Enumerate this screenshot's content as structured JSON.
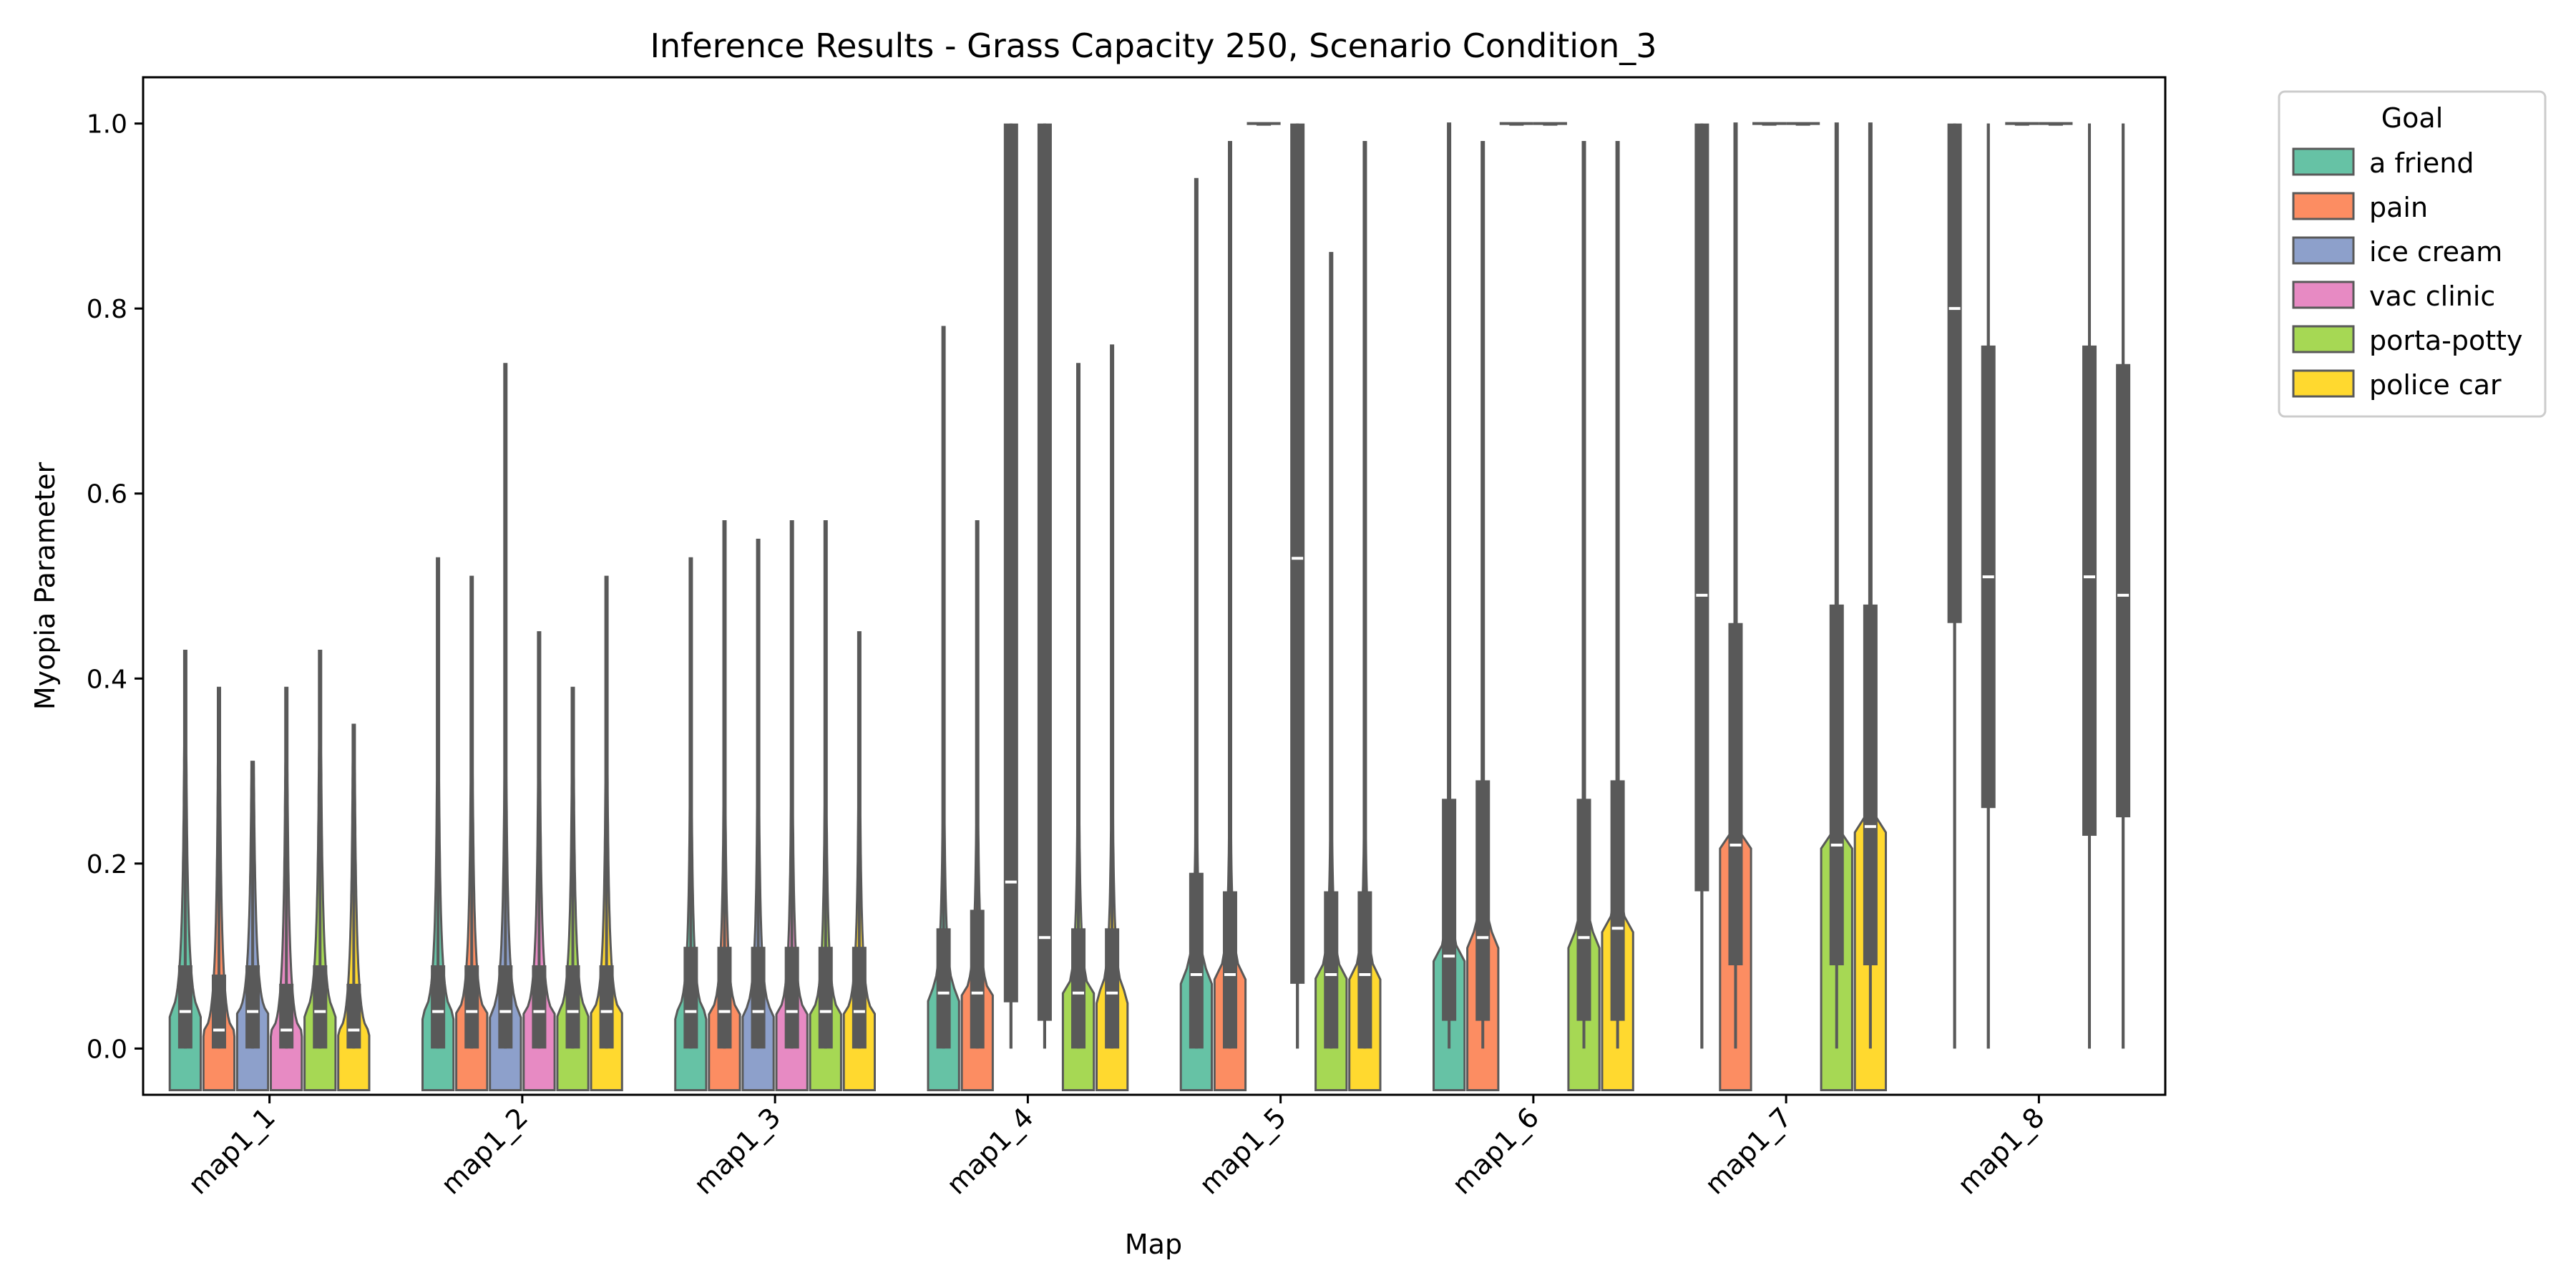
{
  "chart_data": {
    "type": "violin",
    "title": "Inference Results - Grass Capacity 250, Scenario Condition_3",
    "xlabel": "Map",
    "ylabel": "Myopia Parameter",
    "ylim": [
      -0.05,
      1.05
    ],
    "yticks": [
      "0.0",
      "0.2",
      "0.4",
      "0.6",
      "0.8",
      "1.0"
    ],
    "categories": [
      "map1_1",
      "map1_2",
      "map1_3",
      "map1_4",
      "map1_5",
      "map1_6",
      "map1_7",
      "map1_8"
    ],
    "legend": {
      "title": "Goal",
      "position": "outside upper-right",
      "entries": [
        "a friend",
        "pain",
        "ice cream",
        "vac clinic",
        "porta-potty",
        "police car"
      ]
    },
    "series": [
      {
        "name": "a friend",
        "color": "#66c2a5",
        "stats": [
          {
            "max": 0.43,
            "q1": 0.0,
            "median": 0.04,
            "q3": 0.09,
            "kde": 0.4
          },
          {
            "max": 0.53,
            "q1": 0.0,
            "median": 0.04,
            "q3": 0.09,
            "kde": 0.35
          },
          {
            "max": 0.53,
            "q1": 0.0,
            "median": 0.04,
            "q3": 0.11,
            "kde": 0.3
          },
          {
            "max": 0.78,
            "q1": 0.0,
            "median": 0.06,
            "q3": 0.13,
            "kde": 0.25
          },
          {
            "max": 0.94,
            "q1": 0.0,
            "median": 0.08,
            "q3": 0.19,
            "kde": 0.2
          },
          {
            "max": 1.0,
            "q1": 0.03,
            "median": 0.1,
            "q3": 0.27,
            "kde": 0.15
          },
          {
            "max": 1.0,
            "q1": 0.17,
            "median": 0.49,
            "q3": 1.0,
            "kde": 0.0
          },
          {
            "max": 1.0,
            "q1": 0.46,
            "median": 0.8,
            "q3": 1.0,
            "kde": 0.0
          }
        ]
      },
      {
        "name": "pain",
        "color": "#fc8d62",
        "stats": [
          {
            "max": 0.39,
            "q1": 0.0,
            "median": 0.02,
            "q3": 0.08,
            "kde": 0.4
          },
          {
            "max": 0.51,
            "q1": 0.0,
            "median": 0.04,
            "q3": 0.09,
            "kde": 0.35
          },
          {
            "max": 0.57,
            "q1": 0.0,
            "median": 0.04,
            "q3": 0.11,
            "kde": 0.3
          },
          {
            "max": 0.57,
            "q1": 0.0,
            "median": 0.06,
            "q3": 0.15,
            "kde": 0.25
          },
          {
            "max": 0.98,
            "q1": 0.0,
            "median": 0.08,
            "q3": 0.17,
            "kde": 0.2
          },
          {
            "max": 0.98,
            "q1": 0.03,
            "median": 0.12,
            "q3": 0.29,
            "kde": 0.15
          },
          {
            "max": 1.0,
            "q1": 0.09,
            "median": 0.22,
            "q3": 0.46,
            "kde": 0.08
          },
          {
            "max": 1.0,
            "q1": 0.26,
            "median": 0.51,
            "q3": 0.76,
            "kde": 0.0
          }
        ]
      },
      {
        "name": "ice cream",
        "color": "#8da0cb",
        "stats": [
          {
            "max": 0.31,
            "q1": 0.0,
            "median": 0.04,
            "q3": 0.09,
            "kde": 0.4
          },
          {
            "max": 0.74,
            "q1": 0.0,
            "median": 0.04,
            "q3": 0.09,
            "kde": 0.35
          },
          {
            "max": 0.55,
            "q1": 0.0,
            "median": 0.04,
            "q3": 0.11,
            "kde": 0.3
          },
          {
            "max": 1.0,
            "q1": 0.05,
            "median": 0.18,
            "q3": 1.0,
            "kde": 0.0
          },
          {
            "max": 1.0,
            "q1": 1.0,
            "median": 1.0,
            "q3": 1.0,
            "kde": 0.0
          },
          {
            "max": 1.0,
            "q1": 1.0,
            "median": 1.0,
            "q3": 1.0,
            "kde": 0.0
          },
          {
            "max": 1.0,
            "q1": 1.0,
            "median": 1.0,
            "q3": 1.0,
            "kde": 0.0
          },
          {
            "max": 1.0,
            "q1": 1.0,
            "median": 1.0,
            "q3": 1.0,
            "kde": 0.0
          }
        ]
      },
      {
        "name": "vac clinic",
        "color": "#e78ac3",
        "stats": [
          {
            "max": 0.39,
            "q1": 0.0,
            "median": 0.02,
            "q3": 0.07,
            "kde": 0.4
          },
          {
            "max": 0.45,
            "q1": 0.0,
            "median": 0.04,
            "q3": 0.09,
            "kde": 0.35
          },
          {
            "max": 0.57,
            "q1": 0.0,
            "median": 0.04,
            "q3": 0.11,
            "kde": 0.3
          },
          {
            "max": 1.0,
            "q1": 0.03,
            "median": 0.12,
            "q3": 1.0,
            "kde": 0.0
          },
          {
            "max": 1.0,
            "q1": 0.07,
            "median": 0.53,
            "q3": 1.0,
            "kde": 0.0
          },
          {
            "max": 1.0,
            "q1": 1.0,
            "median": 1.0,
            "q3": 1.0,
            "kde": 0.0
          },
          {
            "max": 1.0,
            "q1": 1.0,
            "median": 1.0,
            "q3": 1.0,
            "kde": 0.0
          },
          {
            "max": 1.0,
            "q1": 1.0,
            "median": 1.0,
            "q3": 1.0,
            "kde": 0.0
          }
        ]
      },
      {
        "name": "porta-potty",
        "color": "#a6d854",
        "stats": [
          {
            "max": 0.43,
            "q1": 0.0,
            "median": 0.04,
            "q3": 0.09,
            "kde": 0.4
          },
          {
            "max": 0.39,
            "q1": 0.0,
            "median": 0.04,
            "q3": 0.09,
            "kde": 0.35
          },
          {
            "max": 0.57,
            "q1": 0.0,
            "median": 0.04,
            "q3": 0.11,
            "kde": 0.3
          },
          {
            "max": 0.74,
            "q1": 0.0,
            "median": 0.06,
            "q3": 0.13,
            "kde": 0.25
          },
          {
            "max": 0.86,
            "q1": 0.0,
            "median": 0.08,
            "q3": 0.17,
            "kde": 0.2
          },
          {
            "max": 0.98,
            "q1": 0.03,
            "median": 0.12,
            "q3": 0.27,
            "kde": 0.15
          },
          {
            "max": 1.0,
            "q1": 0.09,
            "median": 0.22,
            "q3": 0.48,
            "kde": 0.08
          },
          {
            "max": 1.0,
            "q1": 0.23,
            "median": 0.51,
            "q3": 0.76,
            "kde": 0.0
          }
        ]
      },
      {
        "name": "police car",
        "color": "#ffd92f",
        "stats": [
          {
            "max": 0.35,
            "q1": 0.0,
            "median": 0.02,
            "q3": 0.07,
            "kde": 0.4
          },
          {
            "max": 0.51,
            "q1": 0.0,
            "median": 0.04,
            "q3": 0.09,
            "kde": 0.35
          },
          {
            "max": 0.45,
            "q1": 0.0,
            "median": 0.04,
            "q3": 0.11,
            "kde": 0.3
          },
          {
            "max": 0.76,
            "q1": 0.0,
            "median": 0.06,
            "q3": 0.13,
            "kde": 0.25
          },
          {
            "max": 0.98,
            "q1": 0.0,
            "median": 0.08,
            "q3": 0.17,
            "kde": 0.2
          },
          {
            "max": 0.98,
            "q1": 0.03,
            "median": 0.13,
            "q3": 0.29,
            "kde": 0.15
          },
          {
            "max": 1.0,
            "q1": 0.09,
            "median": 0.24,
            "q3": 0.48,
            "kde": 0.08
          },
          {
            "max": 1.0,
            "q1": 0.25,
            "median": 0.49,
            "q3": 0.74,
            "kde": 0.0
          }
        ]
      }
    ]
  }
}
